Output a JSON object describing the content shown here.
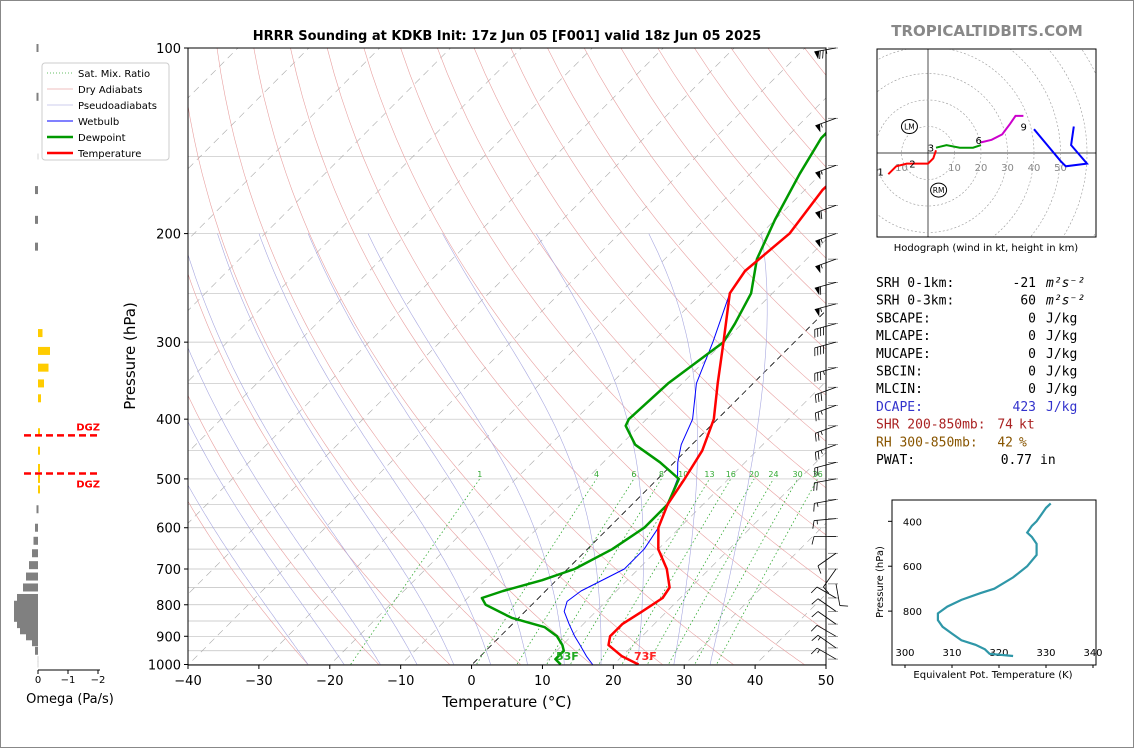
{
  "site": "TROPICALTIDBITS.COM",
  "colors": {
    "temperature": "#ff0000",
    "dewpoint": "#009900",
    "wetbulb": "#0000ff",
    "dgz": "#ff0000",
    "omega_up": "#ffcc00",
    "omega_down": "#808080",
    "theta_e": "#2f97a8",
    "dcape": "#3333cc",
    "shr": "#aa2222",
    "rh": "#885500"
  },
  "chart_data": [
    {
      "type": "line",
      "title": "HRRR Sounding at KDKB Init: 17z Jun 05 [F001] valid 18z Jun 05 2025",
      "xlabel": "Temperature (°C)",
      "ylabel": "Pressure (hPa)",
      "xlim": [
        -40,
        50
      ],
      "ylim": [
        1000,
        100
      ],
      "log_y": true,
      "xticks": [
        "−40",
        "−30",
        "−20",
        "−10",
        "0",
        "10",
        "20",
        "30",
        "40",
        "50"
      ],
      "yticks": [
        "100",
        "200",
        "300",
        "400",
        "500",
        "600",
        "700",
        "800",
        "900",
        "1000"
      ],
      "mix_ratio_labels": [
        "1",
        "4",
        "6",
        "8",
        "10",
        "13",
        "16",
        "20",
        "24",
        "30",
        "36"
      ],
      "surface_labels": {
        "dewpoint": "53F",
        "temperature": "73F"
      },
      "legend": [
        "Sat. Mix. Ratio",
        "Dry Adiabats",
        "Pseudoadiabats",
        "Wetbulb",
        "Dewpoint",
        "Temperature"
      ],
      "series": [
        {
          "name": "Temperature",
          "points": [
            [
              1000,
              23.5
            ],
            [
              970,
              20
            ],
            [
              930,
              16.5
            ],
            [
              900,
              15.5
            ],
            [
              860,
              15.5
            ],
            [
              820,
              16.5
            ],
            [
              780,
              17.5
            ],
            [
              750,
              17
            ],
            [
              700,
              14
            ],
            [
              650,
              10
            ],
            [
              600,
              7
            ],
            [
              550,
              5
            ],
            [
              500,
              3.8
            ],
            [
              450,
              2.3
            ],
            [
              400,
              -0.5
            ],
            [
              350,
              -5
            ],
            [
              300,
              -10
            ],
            [
              250,
              -16
            ],
            [
              230,
              -17
            ],
            [
              200,
              -16
            ],
            [
              170,
              -17.5
            ],
            [
              140,
              -17
            ],
            [
              120,
              -15
            ],
            [
              100,
              -12
            ]
          ]
        },
        {
          "name": "Dewpoint",
          "points": [
            [
              1000,
              12.5
            ],
            [
              980,
              11
            ],
            [
              950,
              11
            ],
            [
              930,
              10
            ],
            [
              900,
              8
            ],
            [
              870,
              5
            ],
            [
              840,
              -1
            ],
            [
              800,
              -6.5
            ],
            [
              780,
              -8
            ],
            [
              760,
              -6
            ],
            [
              730,
              -2
            ],
            [
              700,
              1
            ],
            [
              650,
              3.5
            ],
            [
              600,
              5
            ],
            [
              550,
              5
            ],
            [
              500,
              3
            ],
            [
              470,
              -2
            ],
            [
              440,
              -8
            ],
            [
              410,
              -12
            ],
            [
              400,
              -12.5
            ],
            [
              350,
              -12
            ],
            [
              300,
              -10
            ],
            [
              280,
              -11
            ],
            [
              250,
              -13
            ],
            [
              220,
              -17
            ],
            [
              190,
              -20
            ],
            [
              160,
              -23
            ],
            [
              140,
              -25
            ],
            [
              100,
              -25
            ]
          ]
        },
        {
          "name": "Wetbulb",
          "points": [
            [
              1000,
              17
            ],
            [
              970,
              15
            ],
            [
              930,
              12.5
            ],
            [
              900,
              10.5
            ],
            [
              860,
              8
            ],
            [
              820,
              5.5
            ],
            [
              790,
              4.5
            ],
            [
              760,
              5
            ],
            [
              720,
              7
            ],
            [
              700,
              8
            ],
            [
              650,
              8
            ],
            [
              600,
              7
            ],
            [
              550,
              5
            ],
            [
              500,
              2.8
            ],
            [
              470,
              0.5
            ],
            [
              440,
              -1.5
            ],
            [
              400,
              -3.5
            ],
            [
              350,
              -8
            ],
            [
              300,
              -11.5
            ],
            [
              250,
              -16
            ]
          ]
        }
      ]
    },
    {
      "type": "bar",
      "xlabel": "Omega (Pa/s)",
      "xticks": [
        "0",
        "−1",
        "−2"
      ],
      "levels": [
        100,
        120,
        150,
        170,
        190,
        210,
        290,
        310,
        330,
        350,
        370,
        420,
        450,
        480,
        500,
        520,
        560,
        600,
        630,
        660,
        690,
        720,
        750,
        780,
        800,
        820,
        840,
        860,
        880,
        900,
        920,
        950,
        980,
        1000
      ],
      "values": [
        0.05,
        0.05,
        0,
        0.1,
        0.1,
        0.1,
        -0.15,
        -0.4,
        -0.35,
        -0.2,
        -0.1,
        -0.05,
        -0.05,
        -0.05,
        -0.05,
        -0.05,
        0.05,
        0.1,
        0.15,
        0.2,
        0.3,
        0.4,
        0.5,
        0.7,
        0.8,
        0.8,
        0.8,
        0.7,
        0.6,
        0.4,
        0.2,
        0.1,
        0,
        0
      ],
      "dgz_label": "DGZ",
      "dgz_levels": [
        425,
        490
      ]
    },
    {
      "type": "line",
      "xlabel": "Hodograph (wind in kt, height in km)",
      "ring_labels": [
        "10",
        "20",
        "30",
        "40",
        "50"
      ],
      "height_labels": [
        "1",
        "2",
        "3",
        "6",
        "9"
      ],
      "storm_motion_labels": [
        "LM",
        "RM"
      ],
      "series": [
        {
          "name": "0-3km",
          "color": "#ff0000",
          "points": [
            [
              -15,
              -8
            ],
            [
              -12,
              -5
            ],
            [
              -8,
              -4
            ],
            [
              -4,
              -4
            ],
            [
              0,
              -4
            ],
            [
              2,
              -2
            ],
            [
              3,
              1
            ]
          ]
        },
        {
          "name": "3-6km",
          "color": "#009900",
          "points": [
            [
              3,
              2
            ],
            [
              7,
              3
            ],
            [
              12,
              2
            ],
            [
              17,
              2
            ],
            [
              20,
              3
            ]
          ]
        },
        {
          "name": "6-9km",
          "color": "#cc00cc",
          "points": [
            [
              20,
              4
            ],
            [
              24,
              5
            ],
            [
              28,
              7
            ],
            [
              31,
              11
            ],
            [
              33,
              14
            ],
            [
              36,
              14
            ]
          ]
        },
        {
          "name": "9km+",
          "color": "#0000ff",
          "points": [
            [
              40,
              9
            ],
            [
              45,
              3
            ],
            [
              50,
              -3
            ],
            [
              52,
              -5
            ],
            [
              60,
              -4
            ],
            [
              54,
              3
            ],
            [
              55,
              10
            ]
          ]
        }
      ]
    },
    {
      "type": "line",
      "xlabel": "Equivalent Pot. Temperature (K)",
      "ylabel": "Pressure (hPa)",
      "xlim": [
        300,
        340
      ],
      "ylim": [
        1000,
        300
      ],
      "xticks": [
        "300",
        "310",
        "320",
        "330",
        "340"
      ],
      "yticks": [
        "400",
        "600",
        "800"
      ],
      "series": [
        {
          "name": "Theta-e",
          "points": [
            [
              1000,
              323
            ],
            [
              990,
              318
            ],
            [
              970,
              317
            ],
            [
              950,
              315
            ],
            [
              930,
              312
            ],
            [
              900,
              310
            ],
            [
              870,
              308
            ],
            [
              840,
              307
            ],
            [
              810,
              307
            ],
            [
              780,
              309
            ],
            [
              750,
              312
            ],
            [
              720,
              316
            ],
            [
              700,
              319
            ],
            [
              650,
              323
            ],
            [
              600,
              326
            ],
            [
              550,
              328
            ],
            [
              500,
              328
            ],
            [
              470,
              327
            ],
            [
              450,
              326
            ],
            [
              420,
              327
            ],
            [
              400,
              328
            ],
            [
              370,
              329
            ],
            [
              340,
              330
            ],
            [
              320,
              331
            ]
          ]
        }
      ]
    }
  ],
  "stats": [
    {
      "label": "SRH 0-1km:",
      "value": "-21",
      "unit": "m²s⁻²",
      "color": "#000000"
    },
    {
      "label": "SRH 0-3km:",
      "value": "60",
      "unit": "m²s⁻²",
      "color": "#000000"
    },
    {
      "label": "SBCAPE:",
      "value": "0",
      "unit": "J/kg",
      "color": "#000000"
    },
    {
      "label": "MLCAPE:",
      "value": "0",
      "unit": "J/kg",
      "color": "#000000"
    },
    {
      "label": "MUCAPE:",
      "value": "0",
      "unit": "J/kg",
      "color": "#000000"
    },
    {
      "label": "SBCIN:",
      "value": "0",
      "unit": "J/kg",
      "color": "#000000"
    },
    {
      "label": "MLCIN:",
      "value": "0",
      "unit": "J/kg",
      "color": "#000000"
    },
    {
      "label": "DCAPE:",
      "value": "423",
      "unit": "J/kg",
      "color": "#3333cc"
    },
    {
      "label": "SHR 200-850mb:",
      "value": "74",
      "unit": "kt",
      "color": "#aa2222"
    },
    {
      "label": "RH 300-850mb:",
      "value": "42",
      "unit": "%",
      "color": "#885500"
    },
    {
      "label": "PWAT:",
      "value": "0.77",
      "unit": "in",
      "color": "#000000"
    }
  ],
  "barbs": [
    {
      "p": 100,
      "spd": 75,
      "dir": 260
    },
    {
      "p": 130,
      "spd": 55,
      "dir": 250
    },
    {
      "p": 155,
      "spd": 55,
      "dir": 250
    },
    {
      "p": 180,
      "spd": 60,
      "dir": 250
    },
    {
      "p": 200,
      "spd": 55,
      "dir": 250
    },
    {
      "p": 220,
      "spd": 55,
      "dir": 250
    },
    {
      "p": 240,
      "spd": 60,
      "dir": 255
    },
    {
      "p": 260,
      "spd": 55,
      "dir": 255
    },
    {
      "p": 280,
      "spd": 40,
      "dir": 255
    },
    {
      "p": 300,
      "spd": 40,
      "dir": 255
    },
    {
      "p": 330,
      "spd": 35,
      "dir": 255
    },
    {
      "p": 355,
      "spd": 30,
      "dir": 250
    },
    {
      "p": 380,
      "spd": 25,
      "dir": 250
    },
    {
      "p": 410,
      "spd": 25,
      "dir": 250
    },
    {
      "p": 440,
      "spd": 25,
      "dir": 250
    },
    {
      "p": 470,
      "spd": 20,
      "dir": 255
    },
    {
      "p": 500,
      "spd": 20,
      "dir": 260
    },
    {
      "p": 540,
      "spd": 15,
      "dir": 260
    },
    {
      "p": 580,
      "spd": 15,
      "dir": 265
    },
    {
      "p": 620,
      "spd": 10,
      "dir": 270
    },
    {
      "p": 660,
      "spd": 10,
      "dir": 235
    },
    {
      "p": 700,
      "spd": 10,
      "dir": 215
    },
    {
      "p": 740,
      "spd": 10,
      "dir": 170
    },
    {
      "p": 780,
      "spd": 10,
      "dir": 300
    },
    {
      "p": 820,
      "spd": 10,
      "dir": 305
    },
    {
      "p": 860,
      "spd": 10,
      "dir": 305
    },
    {
      "p": 900,
      "spd": 10,
      "dir": 300
    },
    {
      "p": 940,
      "spd": 15,
      "dir": 305
    },
    {
      "p": 980,
      "spd": 15,
      "dir": 300
    }
  ]
}
